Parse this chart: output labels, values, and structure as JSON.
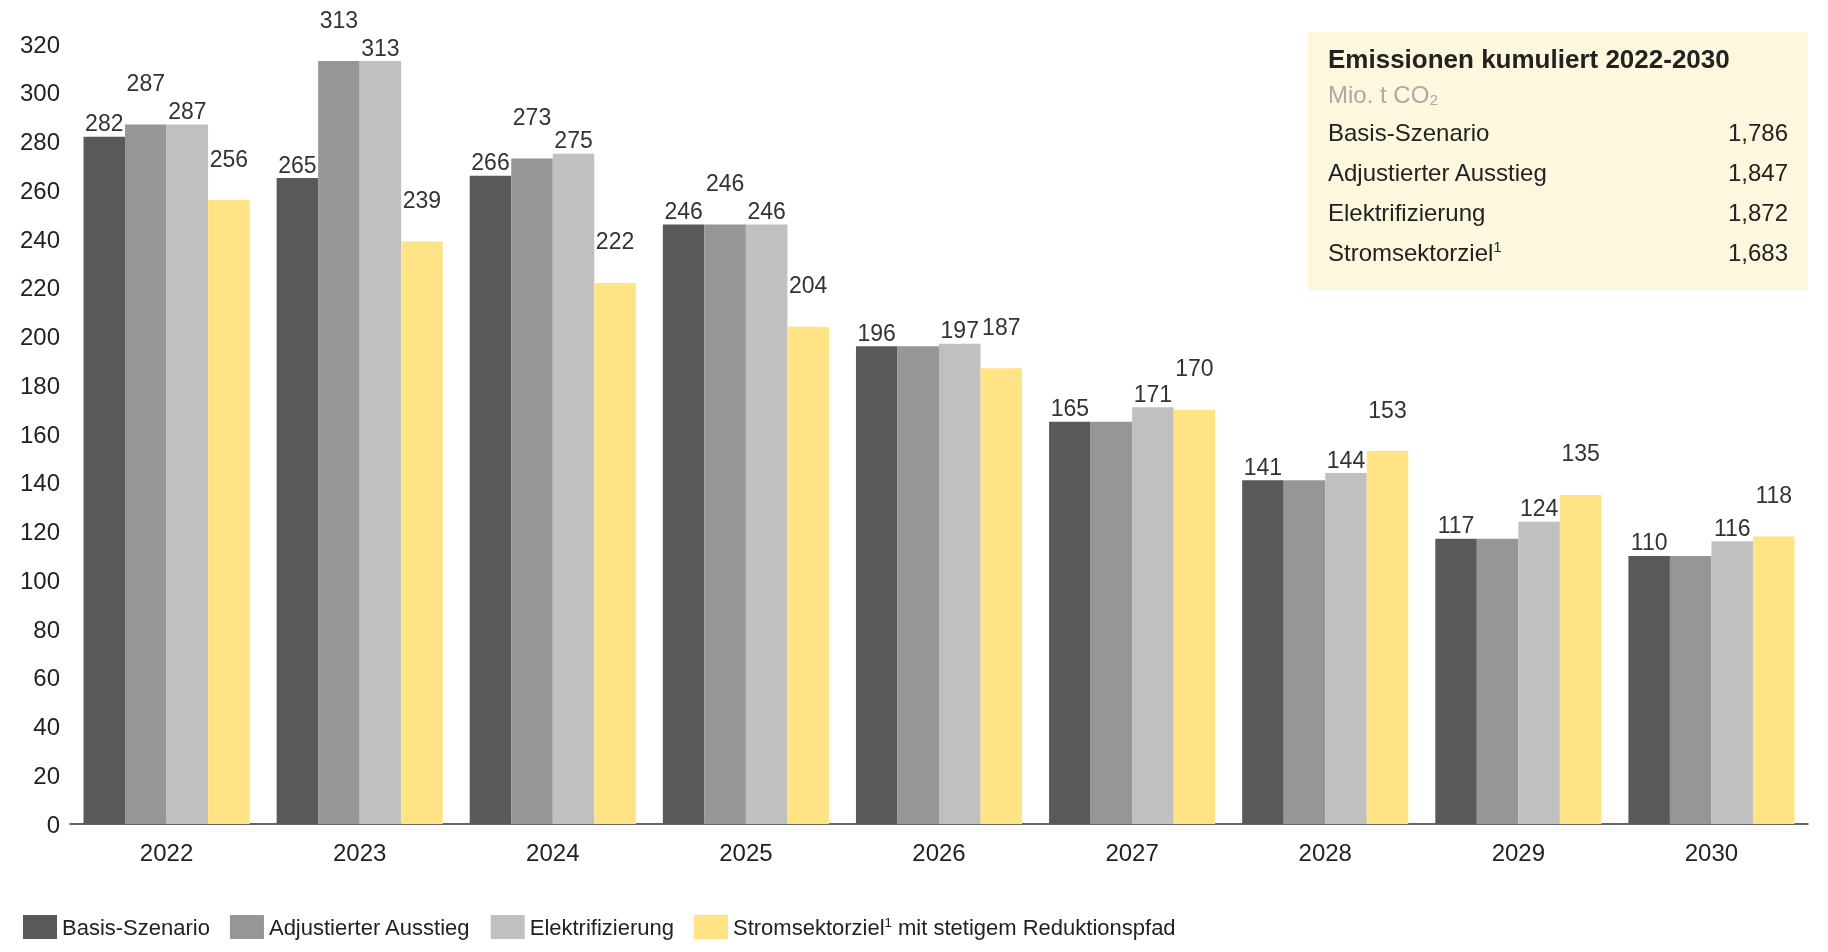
{
  "chart_data": {
    "type": "bar",
    "title": "Emissionen kumuliert 2022-2030",
    "subtitle": "Mio. t CO₂",
    "annotations": [
      "Basis-Szenario",
      "1,786",
      "Adjustierter Ausstieg",
      "1,847",
      "Elektrifizierung",
      "1,872",
      "Stromsektorziel$^{1}$",
      "1,683"
    ],
    "categories": [
      "2022",
      "2023",
      "2024",
      "2025",
      "2026",
      "2027",
      "2028",
      "2029",
      "2030"
    ],
    "series": [
      {
        "name": "Basis-Szenario",
        "color": "#595959",
        "values": [
          282,
          265,
          266,
          246,
          196,
          165,
          141,
          117,
          110
        ],
        "value_labels": [
          "282",
          "265",
          "266",
          "246",
          "196",
          "165",
          "141",
          "117",
          "110"
        ]
      },
      {
        "name": "Adjustierter Ausstieg",
        "color": "#969696",
        "values": [
          287,
          313,
          273,
          246,
          196,
          165,
          141,
          117,
          110
        ],
        "value_labels": [
          "287",
          "313",
          "273",
          "246",
          null,
          null,
          null,
          null,
          null
        ]
      },
      {
        "name": "Elektrifizierung",
        "color": "#c0c0c0",
        "values": [
          287,
          313,
          275,
          246,
          197,
          171,
          144,
          124,
          116
        ],
        "value_labels": [
          "287",
          "313",
          "275",
          "246",
          "197",
          "171",
          "144",
          "124",
          "116"
        ]
      },
      {
        "name": "Stromsektorziel$^{1}$ mit stetigem Reduktionspfad",
        "color": "#ffe384",
        "values": [
          256,
          239,
          222,
          204,
          187,
          170,
          153,
          135,
          118
        ],
        "value_labels": [
          "256",
          "239",
          "222",
          "204",
          "187",
          "170",
          "153",
          "135",
          "118"
        ]
      }
    ],
    "ylim": [
      0,
      320
    ],
    "yticks": [
      0,
      20,
      40,
      60,
      80,
      100,
      120,
      140,
      160,
      180,
      200,
      220,
      240,
      260,
      280,
      300,
      320
    ],
    "grid": false,
    "legend": "bottom left"
  }
}
